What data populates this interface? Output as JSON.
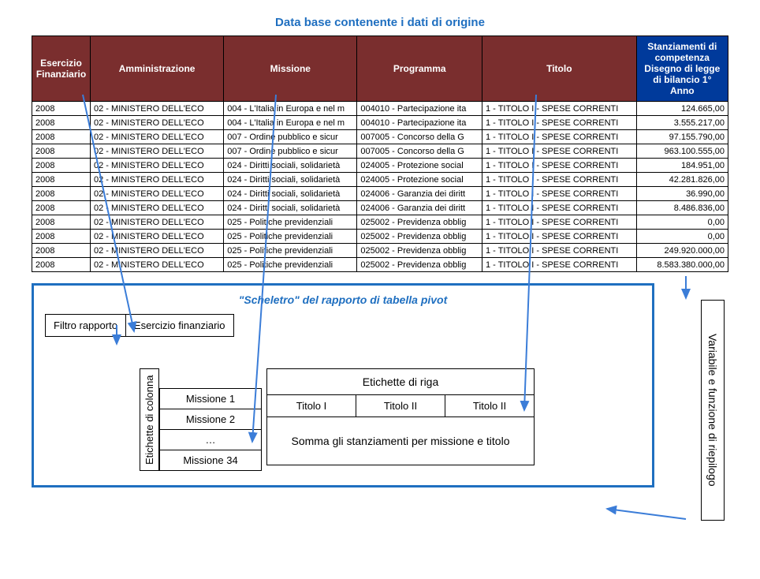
{
  "title_top": "Data base contenente i dati di origine",
  "headers": {
    "esercizio": "Esercizio Finanziario",
    "amministrazione": "Amministrazione",
    "missione": "Missione",
    "programma": "Programma",
    "titolo": "Titolo",
    "stanziamenti": "Stanziamenti di competenza Disegno di legge di bilancio 1° Anno"
  },
  "rows": [
    {
      "eser": "2008",
      "ammin": "02 - MINISTERO DELL'ECO",
      "miss": "004 - L'Italia in Europa e nel m",
      "prog": "004010 - Partecipazione ita",
      "tit": "1 - TITOLO I - SPESE CORRENTI",
      "stanz": "124.665,00"
    },
    {
      "eser": "2008",
      "ammin": "02 - MINISTERO DELL'ECO",
      "miss": "004 - L'Italia in Europa e nel m",
      "prog": "004010 - Partecipazione ita",
      "tit": "1 - TITOLO I - SPESE CORRENTI",
      "stanz": "3.555.217,00"
    },
    {
      "eser": "2008",
      "ammin": "02 - MINISTERO DELL'ECO",
      "miss": "007 - Ordine pubblico e sicur",
      "prog": "007005 - Concorso della G",
      "tit": "1 - TITOLO I - SPESE CORRENTI",
      "stanz": "97.155.790,00"
    },
    {
      "eser": "2008",
      "ammin": "02 - MINISTERO DELL'ECO",
      "miss": "007 - Ordine pubblico e sicur",
      "prog": "007005 - Concorso della G",
      "tit": "1 - TITOLO I - SPESE CORRENTI",
      "stanz": "963.100.555,00"
    },
    {
      "eser": "2008",
      "ammin": "02 - MINISTERO DELL'ECO",
      "miss": "024 - Diritti sociali, solidarietà",
      "prog": "024005 - Protezione social",
      "tit": "1 - TITOLO I - SPESE CORRENTI",
      "stanz": "184.951,00"
    },
    {
      "eser": "2008",
      "ammin": "02 - MINISTERO DELL'ECO",
      "miss": "024 - Diritti sociali, solidarietà",
      "prog": "024005 - Protezione social",
      "tit": "1 - TITOLO I - SPESE CORRENTI",
      "stanz": "42.281.826,00"
    },
    {
      "eser": "2008",
      "ammin": "02 - MINISTERO DELL'ECO",
      "miss": "024 - Diritti sociali, solidarietà",
      "prog": "024006 - Garanzia dei diritt",
      "tit": "1 - TITOLO I - SPESE CORRENTI",
      "stanz": "36.990,00"
    },
    {
      "eser": "2008",
      "ammin": "02 - MINISTERO DELL'ECO",
      "miss": "024 - Diritti sociali, solidarietà",
      "prog": "024006 - Garanzia dei diritt",
      "tit": "1 - TITOLO I - SPESE CORRENTI",
      "stanz": "8.486.836,00"
    },
    {
      "eser": "2008",
      "ammin": "02 - MINISTERO DELL'ECO",
      "miss": "025 - Politiche previdenziali",
      "prog": "025002 - Previdenza obblig",
      "tit": "1 - TITOLO I - SPESE CORRENTI",
      "stanz": "0,00"
    },
    {
      "eser": "2008",
      "ammin": "02 - MINISTERO DELL'ECO",
      "miss": "025 - Politiche previdenziali",
      "prog": "025002 - Previdenza obblig",
      "tit": "1 - TITOLO I - SPESE CORRENTI",
      "stanz": "0,00"
    },
    {
      "eser": "2008",
      "ammin": "02 - MINISTERO DELL'ECO",
      "miss": "025 - Politiche previdenziali",
      "prog": "025002 - Previdenza obblig",
      "tit": "1 - TITOLO I - SPESE CORRENTI",
      "stanz": "249.920.000,00"
    },
    {
      "eser": "2008",
      "ammin": "02 - MINISTERO DELL'ECO",
      "miss": "025 - Politiche previdenziali",
      "prog": "025002 - Previdenza obblig",
      "tit": "1 - TITOLO I - SPESE CORRENTI",
      "stanz": "8.583.380.000,00"
    }
  ],
  "pivot": {
    "title": "\"Scheletro\" del rapporto di tabella pivot",
    "filtro_label": "Filtro rapporto",
    "filtro_value": "Esercizio finanziario",
    "etichette_colonna": "Etichette di colonna",
    "missioni": [
      "Missione 1",
      "Missione 2",
      "…",
      "Missione 34"
    ],
    "etichette_riga": "Etichette di riga",
    "titoli": [
      "Titolo I",
      "Titolo II",
      "Titolo II"
    ],
    "somma": "Somma gli stanziamenti per missione e titolo",
    "variabile": "Variabile e funzione di riepilogo"
  },
  "colors": {
    "header_red": "#7a2e2e",
    "header_blue": "#003a9b",
    "accent_blue": "#1f6fc0",
    "arrow_blue": "#3b7dd8"
  }
}
